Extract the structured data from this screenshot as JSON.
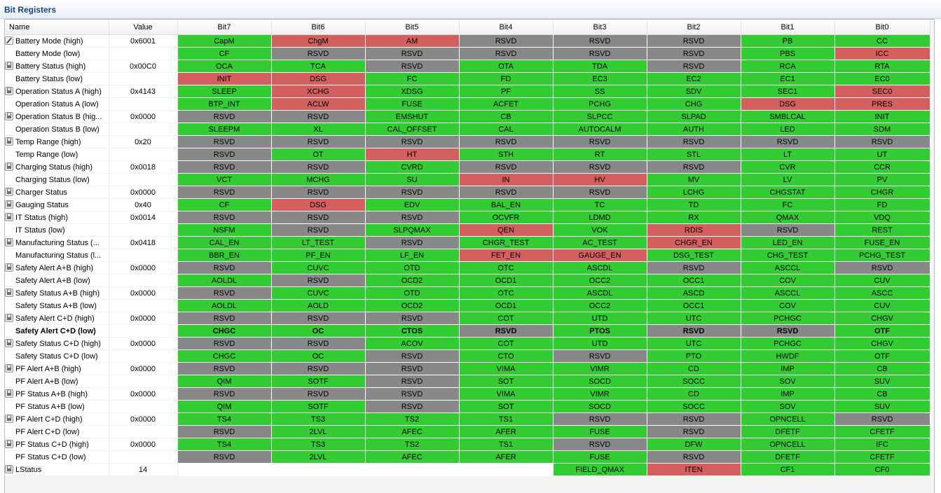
{
  "panel": {
    "title": "Bit Registers"
  },
  "columns": [
    "Name",
    "Value",
    "Bit7",
    "Bit6",
    "Bit5",
    "Bit4",
    "Bit3",
    "Bit2",
    "Bit1",
    "Bit0"
  ],
  "colors": {
    "set": "#33cc33",
    "flag": "#d45f5f",
    "reserved": "#888888"
  },
  "rows": [
    {
      "name": "Battery Mode (high)",
      "value": "0x6001",
      "icon": "pencil-icon",
      "bits": [
        [
          "CapM",
          "g"
        ],
        [
          "ChgM",
          "r"
        ],
        [
          "AM",
          "r"
        ],
        [
          "RSVD",
          "x"
        ],
        [
          "RSVD",
          "x"
        ],
        [
          "RSVD",
          "x"
        ],
        [
          "PB",
          "g"
        ],
        [
          "CC",
          "g"
        ]
      ]
    },
    {
      "name": "Battery Mode (low)",
      "value": "",
      "icon": "",
      "bits": [
        [
          "CF",
          "g"
        ],
        [
          "RSVD",
          "x"
        ],
        [
          "RSVD",
          "x"
        ],
        [
          "RSVD",
          "x"
        ],
        [
          "RSVD",
          "x"
        ],
        [
          "RSVD",
          "x"
        ],
        [
          "PBS",
          "g"
        ],
        [
          "ICC",
          "r"
        ]
      ]
    },
    {
      "name": "Battery Status (high)",
      "value": "0x00C0",
      "icon": "lock-icon",
      "bits": [
        [
          "OCA",
          "g"
        ],
        [
          "TCA",
          "g"
        ],
        [
          "RSVD",
          "x"
        ],
        [
          "OTA",
          "g"
        ],
        [
          "TDA",
          "g"
        ],
        [
          "RSVD",
          "x"
        ],
        [
          "RCA",
          "g"
        ],
        [
          "RTA",
          "g"
        ]
      ]
    },
    {
      "name": "Battery Status (low)",
      "value": "",
      "icon": "",
      "bits": [
        [
          "INIT",
          "r"
        ],
        [
          "DSG",
          "r"
        ],
        [
          "FC",
          "g"
        ],
        [
          "FD",
          "g"
        ],
        [
          "EC3",
          "g"
        ],
        [
          "EC2",
          "g"
        ],
        [
          "EC1",
          "g"
        ],
        [
          "EC0",
          "g"
        ]
      ]
    },
    {
      "name": "Operation Status A (high)",
      "value": "0x4143",
      "icon": "lock-icon",
      "bits": [
        [
          "SLEEP",
          "g"
        ],
        [
          "XCHG",
          "r"
        ],
        [
          "XDSG",
          "g"
        ],
        [
          "PF",
          "g"
        ],
        [
          "SS",
          "g"
        ],
        [
          "SDV",
          "g"
        ],
        [
          "SEC1",
          "g"
        ],
        [
          "SEC0",
          "r"
        ]
      ]
    },
    {
      "name": "Operation Status A (low)",
      "value": "",
      "icon": "",
      "bits": [
        [
          "BTP_INT",
          "g"
        ],
        [
          "ACLW",
          "r"
        ],
        [
          "FUSE",
          "g"
        ],
        [
          "ACFET",
          "g"
        ],
        [
          "PCHG",
          "g"
        ],
        [
          "CHG",
          "g"
        ],
        [
          "DSG",
          "r"
        ],
        [
          "PRES",
          "r"
        ]
      ]
    },
    {
      "name": "Operation Status B (hig...",
      "value": "0x0000",
      "icon": "lock-icon",
      "bits": [
        [
          "RSVD",
          "x"
        ],
        [
          "RSVD",
          "x"
        ],
        [
          "EMSHUT",
          "g"
        ],
        [
          "CB",
          "g"
        ],
        [
          "SLPCC",
          "g"
        ],
        [
          "SLPAD",
          "g"
        ],
        [
          "SMBLCAL",
          "g"
        ],
        [
          "INIT",
          "g"
        ]
      ]
    },
    {
      "name": "Operation Status B (low)",
      "value": "",
      "icon": "",
      "bits": [
        [
          "SLEEPM",
          "g"
        ],
        [
          "XL",
          "g"
        ],
        [
          "CAL_OFFSET",
          "g"
        ],
        [
          "CAL",
          "g"
        ],
        [
          "AUTOCALM",
          "g"
        ],
        [
          "AUTH",
          "g"
        ],
        [
          "LED",
          "g"
        ],
        [
          "SDM",
          "g"
        ]
      ]
    },
    {
      "name": "Temp Range (high)",
      "value": "0x20",
      "icon": "lock-icon",
      "bits": [
        [
          "RSVD",
          "x"
        ],
        [
          "RSVD",
          "x"
        ],
        [
          "RSVD",
          "x"
        ],
        [
          "RSVD",
          "x"
        ],
        [
          "RSVD",
          "x"
        ],
        [
          "RSVD",
          "x"
        ],
        [
          "RSVD",
          "x"
        ],
        [
          "RSVD",
          "x"
        ]
      ]
    },
    {
      "name": "Temp Range (low)",
      "value": "",
      "icon": "",
      "bits": [
        [
          "RSVD",
          "x"
        ],
        [
          "OT",
          "g"
        ],
        [
          "HT",
          "r"
        ],
        [
          "STH",
          "g"
        ],
        [
          "RT",
          "g"
        ],
        [
          "STL",
          "g"
        ],
        [
          "LT",
          "g"
        ],
        [
          "UT",
          "g"
        ]
      ]
    },
    {
      "name": "Charging Status (high)",
      "value": "0x0018",
      "icon": "lock-icon",
      "bits": [
        [
          "RSVD",
          "x"
        ],
        [
          "RSVD",
          "x"
        ],
        [
          "CVRD",
          "g"
        ],
        [
          "RSVD",
          "x"
        ],
        [
          "RSVD",
          "x"
        ],
        [
          "RSVD",
          "x"
        ],
        [
          "CVR",
          "g"
        ],
        [
          "CCR",
          "g"
        ]
      ]
    },
    {
      "name": "Charging Status (low)",
      "value": "",
      "icon": "",
      "bits": [
        [
          "VCT",
          "g"
        ],
        [
          "MCHG",
          "g"
        ],
        [
          "SU",
          "g"
        ],
        [
          "IN",
          "r"
        ],
        [
          "HV",
          "r"
        ],
        [
          "MV",
          "g"
        ],
        [
          "LV",
          "g"
        ],
        [
          "PV",
          "g"
        ]
      ]
    },
    {
      "name": "Charger Status",
      "value": "0x0000",
      "icon": "lock-icon",
      "bits": [
        [
          "RSVD",
          "x"
        ],
        [
          "RSVD",
          "x"
        ],
        [
          "RSVD",
          "x"
        ],
        [
          "RSVD",
          "x"
        ],
        [
          "RSVD",
          "x"
        ],
        [
          "LCHG",
          "g"
        ],
        [
          "CHGSTAT",
          "g"
        ],
        [
          "CHGR",
          "g"
        ]
      ]
    },
    {
      "name": "Gauging Status",
      "value": "0x40",
      "icon": "lock-icon",
      "bits": [
        [
          "CF",
          "g"
        ],
        [
          "DSG",
          "r"
        ],
        [
          "EDV",
          "g"
        ],
        [
          "BAL_EN",
          "g"
        ],
        [
          "TC",
          "g"
        ],
        [
          "TD",
          "g"
        ],
        [
          "FC",
          "g"
        ],
        [
          "FD",
          "g"
        ]
      ]
    },
    {
      "name": "IT Status (high)",
      "value": "0x0014",
      "icon": "lock-icon",
      "bits": [
        [
          "RSVD",
          "x"
        ],
        [
          "RSVD",
          "x"
        ],
        [
          "RSVD",
          "x"
        ],
        [
          "OCVFR",
          "g"
        ],
        [
          "LDMD",
          "g"
        ],
        [
          "RX",
          "g"
        ],
        [
          "QMAX",
          "g"
        ],
        [
          "VDQ",
          "g"
        ]
      ]
    },
    {
      "name": "IT Status (low)",
      "value": "",
      "icon": "",
      "bits": [
        [
          "NSFM",
          "g"
        ],
        [
          "RSVD",
          "x"
        ],
        [
          "SLPQMAX",
          "g"
        ],
        [
          "QEN",
          "r"
        ],
        [
          "VOK",
          "g"
        ],
        [
          "RDIS",
          "r"
        ],
        [
          "RSVD",
          "x"
        ],
        [
          "REST",
          "g"
        ]
      ]
    },
    {
      "name": "Manufacturing Status (...",
      "value": "0x0418",
      "icon": "lock-icon",
      "bits": [
        [
          "CAL_EN",
          "g"
        ],
        [
          "LT_TEST",
          "g"
        ],
        [
          "RSVD",
          "x"
        ],
        [
          "CHGR_TEST",
          "g"
        ],
        [
          "AC_TEST",
          "g"
        ],
        [
          "CHGR_EN",
          "r"
        ],
        [
          "LED_EN",
          "g"
        ],
        [
          "FUSE_EN",
          "g"
        ]
      ]
    },
    {
      "name": "Manufacturing Status (l...",
      "value": "",
      "icon": "",
      "bits": [
        [
          "BBR_EN",
          "g"
        ],
        [
          "PF_EN",
          "g"
        ],
        [
          "LF_EN",
          "g"
        ],
        [
          "FET_EN",
          "r"
        ],
        [
          "GAUGE_EN",
          "r"
        ],
        [
          "DSG_TEST",
          "g"
        ],
        [
          "CHG_TEST",
          "g"
        ],
        [
          "PCHG_TEST",
          "g"
        ]
      ]
    },
    {
      "name": "Safety Alert A+B (high)",
      "value": "0x0000",
      "icon": "lock-icon",
      "bits": [
        [
          "RSVD",
          "x"
        ],
        [
          "CUVC",
          "g"
        ],
        [
          "OTD",
          "g"
        ],
        [
          "OTC",
          "g"
        ],
        [
          "ASCDL",
          "g"
        ],
        [
          "RSVD",
          "x"
        ],
        [
          "ASCCL",
          "g"
        ],
        [
          "RSVD",
          "x"
        ]
      ]
    },
    {
      "name": "Safety Alert A+B (low)",
      "value": "",
      "icon": "",
      "bits": [
        [
          "AOLDL",
          "g"
        ],
        [
          "RSVD",
          "x"
        ],
        [
          "OCD2",
          "g"
        ],
        [
          "OCD1",
          "g"
        ],
        [
          "OCC2",
          "g"
        ],
        [
          "OCC1",
          "g"
        ],
        [
          "COV",
          "g"
        ],
        [
          "CUV",
          "g"
        ]
      ]
    },
    {
      "name": "Safety Status A+B (high)",
      "value": "0x0000",
      "icon": "lock-icon",
      "bits": [
        [
          "RSVD",
          "x"
        ],
        [
          "CUVC",
          "g"
        ],
        [
          "OTD",
          "g"
        ],
        [
          "OTC",
          "g"
        ],
        [
          "ASCDL",
          "g"
        ],
        [
          "ASCD",
          "g"
        ],
        [
          "ASCCL",
          "g"
        ],
        [
          "ASCC",
          "g"
        ]
      ]
    },
    {
      "name": "Safety Status A+B (low)",
      "value": "",
      "icon": "",
      "bits": [
        [
          "AOLDL",
          "g"
        ],
        [
          "AOLD",
          "g"
        ],
        [
          "OCD2",
          "g"
        ],
        [
          "OCD1",
          "g"
        ],
        [
          "OCC2",
          "g"
        ],
        [
          "OCC1",
          "g"
        ],
        [
          "COV",
          "g"
        ],
        [
          "CUV",
          "g"
        ]
      ]
    },
    {
      "name": "Safety Alert C+D (high)",
      "value": "0x0000",
      "icon": "lock-icon",
      "bits": [
        [
          "RSVD",
          "x"
        ],
        [
          "RSVD",
          "x"
        ],
        [
          "RSVD",
          "x"
        ],
        [
          "COT",
          "g"
        ],
        [
          "UTD",
          "g"
        ],
        [
          "UTC",
          "g"
        ],
        [
          "PCHGC",
          "g"
        ],
        [
          "CHGV",
          "g"
        ]
      ]
    },
    {
      "name": "Safety Alert C+D (low)",
      "value": "",
      "icon": "",
      "bold": true,
      "bits": [
        [
          "CHGC",
          "g"
        ],
        [
          "OC",
          "g"
        ],
        [
          "CTOS",
          "g"
        ],
        [
          "RSVD",
          "x"
        ],
        [
          "PTOS",
          "g"
        ],
        [
          "RSVD",
          "x"
        ],
        [
          "RSVD",
          "x"
        ],
        [
          "OTF",
          "g"
        ]
      ]
    },
    {
      "name": "Safety Status C+D (high)",
      "value": "0x0000",
      "icon": "lock-icon",
      "bits": [
        [
          "RSVD",
          "x"
        ],
        [
          "RSVD",
          "x"
        ],
        [
          "ACOV",
          "g"
        ],
        [
          "COT",
          "g"
        ],
        [
          "UTD",
          "g"
        ],
        [
          "UTC",
          "g"
        ],
        [
          "PCHGC",
          "g"
        ],
        [
          "CHGV",
          "g"
        ]
      ]
    },
    {
      "name": "Safety Status C+D (low)",
      "value": "",
      "icon": "",
      "bits": [
        [
          "CHGC",
          "g"
        ],
        [
          "OC",
          "g"
        ],
        [
          "RSVD",
          "x"
        ],
        [
          "CTO",
          "g"
        ],
        [
          "RSVD",
          "x"
        ],
        [
          "PTO",
          "g"
        ],
        [
          "HWDF",
          "g"
        ],
        [
          "OTF",
          "g"
        ]
      ]
    },
    {
      "name": "PF Alert A+B (high)",
      "value": "0x0000",
      "icon": "lock-icon",
      "bits": [
        [
          "RSVD",
          "x"
        ],
        [
          "RSVD",
          "x"
        ],
        [
          "RSVD",
          "x"
        ],
        [
          "VIMA",
          "g"
        ],
        [
          "VIMR",
          "g"
        ],
        [
          "CD",
          "g"
        ],
        [
          "IMP",
          "g"
        ],
        [
          "CB",
          "g"
        ]
      ]
    },
    {
      "name": "PF Alert A+B (low)",
      "value": "",
      "icon": "",
      "bits": [
        [
          "QIM",
          "g"
        ],
        [
          "SOTF",
          "g"
        ],
        [
          "RSVD",
          "x"
        ],
        [
          "SOT",
          "g"
        ],
        [
          "SOCD",
          "g"
        ],
        [
          "SOCC",
          "g"
        ],
        [
          "SOV",
          "g"
        ],
        [
          "SUV",
          "g"
        ]
      ]
    },
    {
      "name": "PF Status A+B (high)",
      "value": "0x0000",
      "icon": "lock-icon",
      "bits": [
        [
          "RSVD",
          "x"
        ],
        [
          "RSVD",
          "x"
        ],
        [
          "RSVD",
          "x"
        ],
        [
          "VIMA",
          "g"
        ],
        [
          "VIMR",
          "g"
        ],
        [
          "CD",
          "g"
        ],
        [
          "IMP",
          "g"
        ],
        [
          "CB",
          "g"
        ]
      ]
    },
    {
      "name": "PF Status A+B (low)",
      "value": "",
      "icon": "",
      "bits": [
        [
          "QIM",
          "g"
        ],
        [
          "SOTF",
          "g"
        ],
        [
          "RSVD",
          "x"
        ],
        [
          "SOT",
          "g"
        ],
        [
          "SOCD",
          "g"
        ],
        [
          "SOCC",
          "g"
        ],
        [
          "SOV",
          "g"
        ],
        [
          "SUV",
          "g"
        ]
      ]
    },
    {
      "name": "PF Alert C+D (high)",
      "value": "0x0000",
      "icon": "lock-icon",
      "bits": [
        [
          "TS4",
          "g"
        ],
        [
          "TS3",
          "g"
        ],
        [
          "TS2",
          "g"
        ],
        [
          "TS1",
          "g"
        ],
        [
          "RSVD",
          "x"
        ],
        [
          "RSVD",
          "x"
        ],
        [
          "OPNCELL",
          "g"
        ],
        [
          "RSVD",
          "x"
        ]
      ]
    },
    {
      "name": "PF Alert C+D (low)",
      "value": "",
      "icon": "",
      "bits": [
        [
          "RSVD",
          "x"
        ],
        [
          "2LVL",
          "g"
        ],
        [
          "AFEC",
          "g"
        ],
        [
          "AFER",
          "g"
        ],
        [
          "FUSE",
          "g"
        ],
        [
          "RSVD",
          "x"
        ],
        [
          "DFETF",
          "g"
        ],
        [
          "CFETF",
          "g"
        ]
      ]
    },
    {
      "name": "PF Status C+D (high)",
      "value": "0x0000",
      "icon": "lock-icon",
      "bits": [
        [
          "TS4",
          "g"
        ],
        [
          "TS3",
          "g"
        ],
        [
          "TS2",
          "g"
        ],
        [
          "TS1",
          "g"
        ],
        [
          "RSVD",
          "x"
        ],
        [
          "DFW",
          "g"
        ],
        [
          "OPNCELL",
          "g"
        ],
        [
          "IFC",
          "g"
        ]
      ]
    },
    {
      "name": "PF Status C+D (low)",
      "value": "",
      "icon": "",
      "bits": [
        [
          "RSVD",
          "x"
        ],
        [
          "2LVL",
          "g"
        ],
        [
          "AFEC",
          "g"
        ],
        [
          "AFER",
          "g"
        ],
        [
          "FUSE",
          "g"
        ],
        [
          "RSVD",
          "x"
        ],
        [
          "DFETF",
          "g"
        ],
        [
          "CFETF",
          "g"
        ]
      ]
    },
    {
      "name": "LStatus",
      "value": "14",
      "icon": "lock-icon",
      "bits": [
        [
          "",
          "e"
        ],
        [
          "",
          "e"
        ],
        [
          "",
          "e"
        ],
        [
          "",
          "e"
        ],
        [
          "FIELD_QMAX",
          "g"
        ],
        [
          "ITEN",
          "r"
        ],
        [
          "CF1",
          "g"
        ],
        [
          "CF0",
          "g"
        ]
      ]
    }
  ]
}
